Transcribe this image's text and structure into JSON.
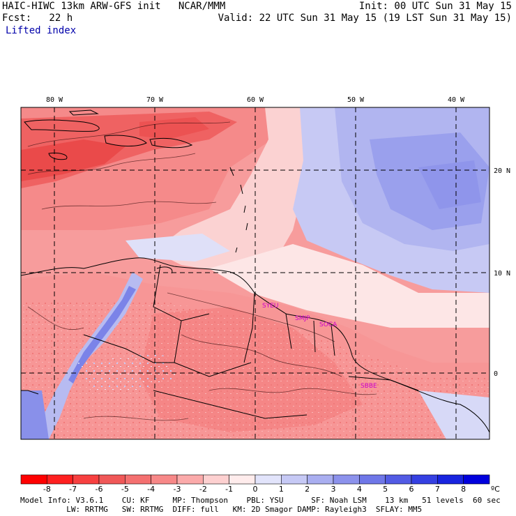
{
  "header": {
    "model_line": "HAIC-HIWC 13km ARW-GFS init   NCAR/MMM",
    "init_line": "Init: 00 UTC Sun 31 May 15",
    "fcst_line": "Fcst:   22 h",
    "valid_line": "Valid: 22 UTC Sun 31 May 15 (19 LST Sun 31 May 15)",
    "field": "Lifted index"
  },
  "map": {
    "lon_labels": [
      "80 W",
      "70 W",
      "60 W",
      "50 W",
      "40 W"
    ],
    "lat_labels": [
      "20 N",
      "10 N",
      "0"
    ],
    "stations": [
      "SYEU",
      "SMJP",
      "SOCA",
      "SBBE"
    ],
    "station_color": "#cc00cc",
    "grid_style": "dashed"
  },
  "colorbar": {
    "ticks": [
      "-8",
      "-7",
      "-6",
      "-5",
      "-4",
      "-3",
      "-2",
      "-1",
      "0",
      "1",
      "2",
      "3",
      "4",
      "5",
      "6",
      "7",
      "8"
    ],
    "unit": "ºC",
    "colors": [
      "#ff0000",
      "#ff2020",
      "#f74040",
      "#f05858",
      "#f47070",
      "#f78888",
      "#fbaaaa",
      "#fdd0d0",
      "#ffecec",
      "#e2e4fb",
      "#c6c9f5",
      "#a9aef0",
      "#8c92ec",
      "#6f77e8",
      "#525be4",
      "#3540e2",
      "#1824df",
      "#0000dd"
    ]
  },
  "footer": {
    "line1": "Model Info: V3.6.1    CU: KF     MP: Thompson    PBL: YSU      SF: Noah LSM    13 km   51 levels  60 sec",
    "line2": "          LW: RRTMG   SW: RRTMG  DIFF: full   KM: 2D Smagor DAMP: Rayleigh3  SFLAY: MM5"
  }
}
